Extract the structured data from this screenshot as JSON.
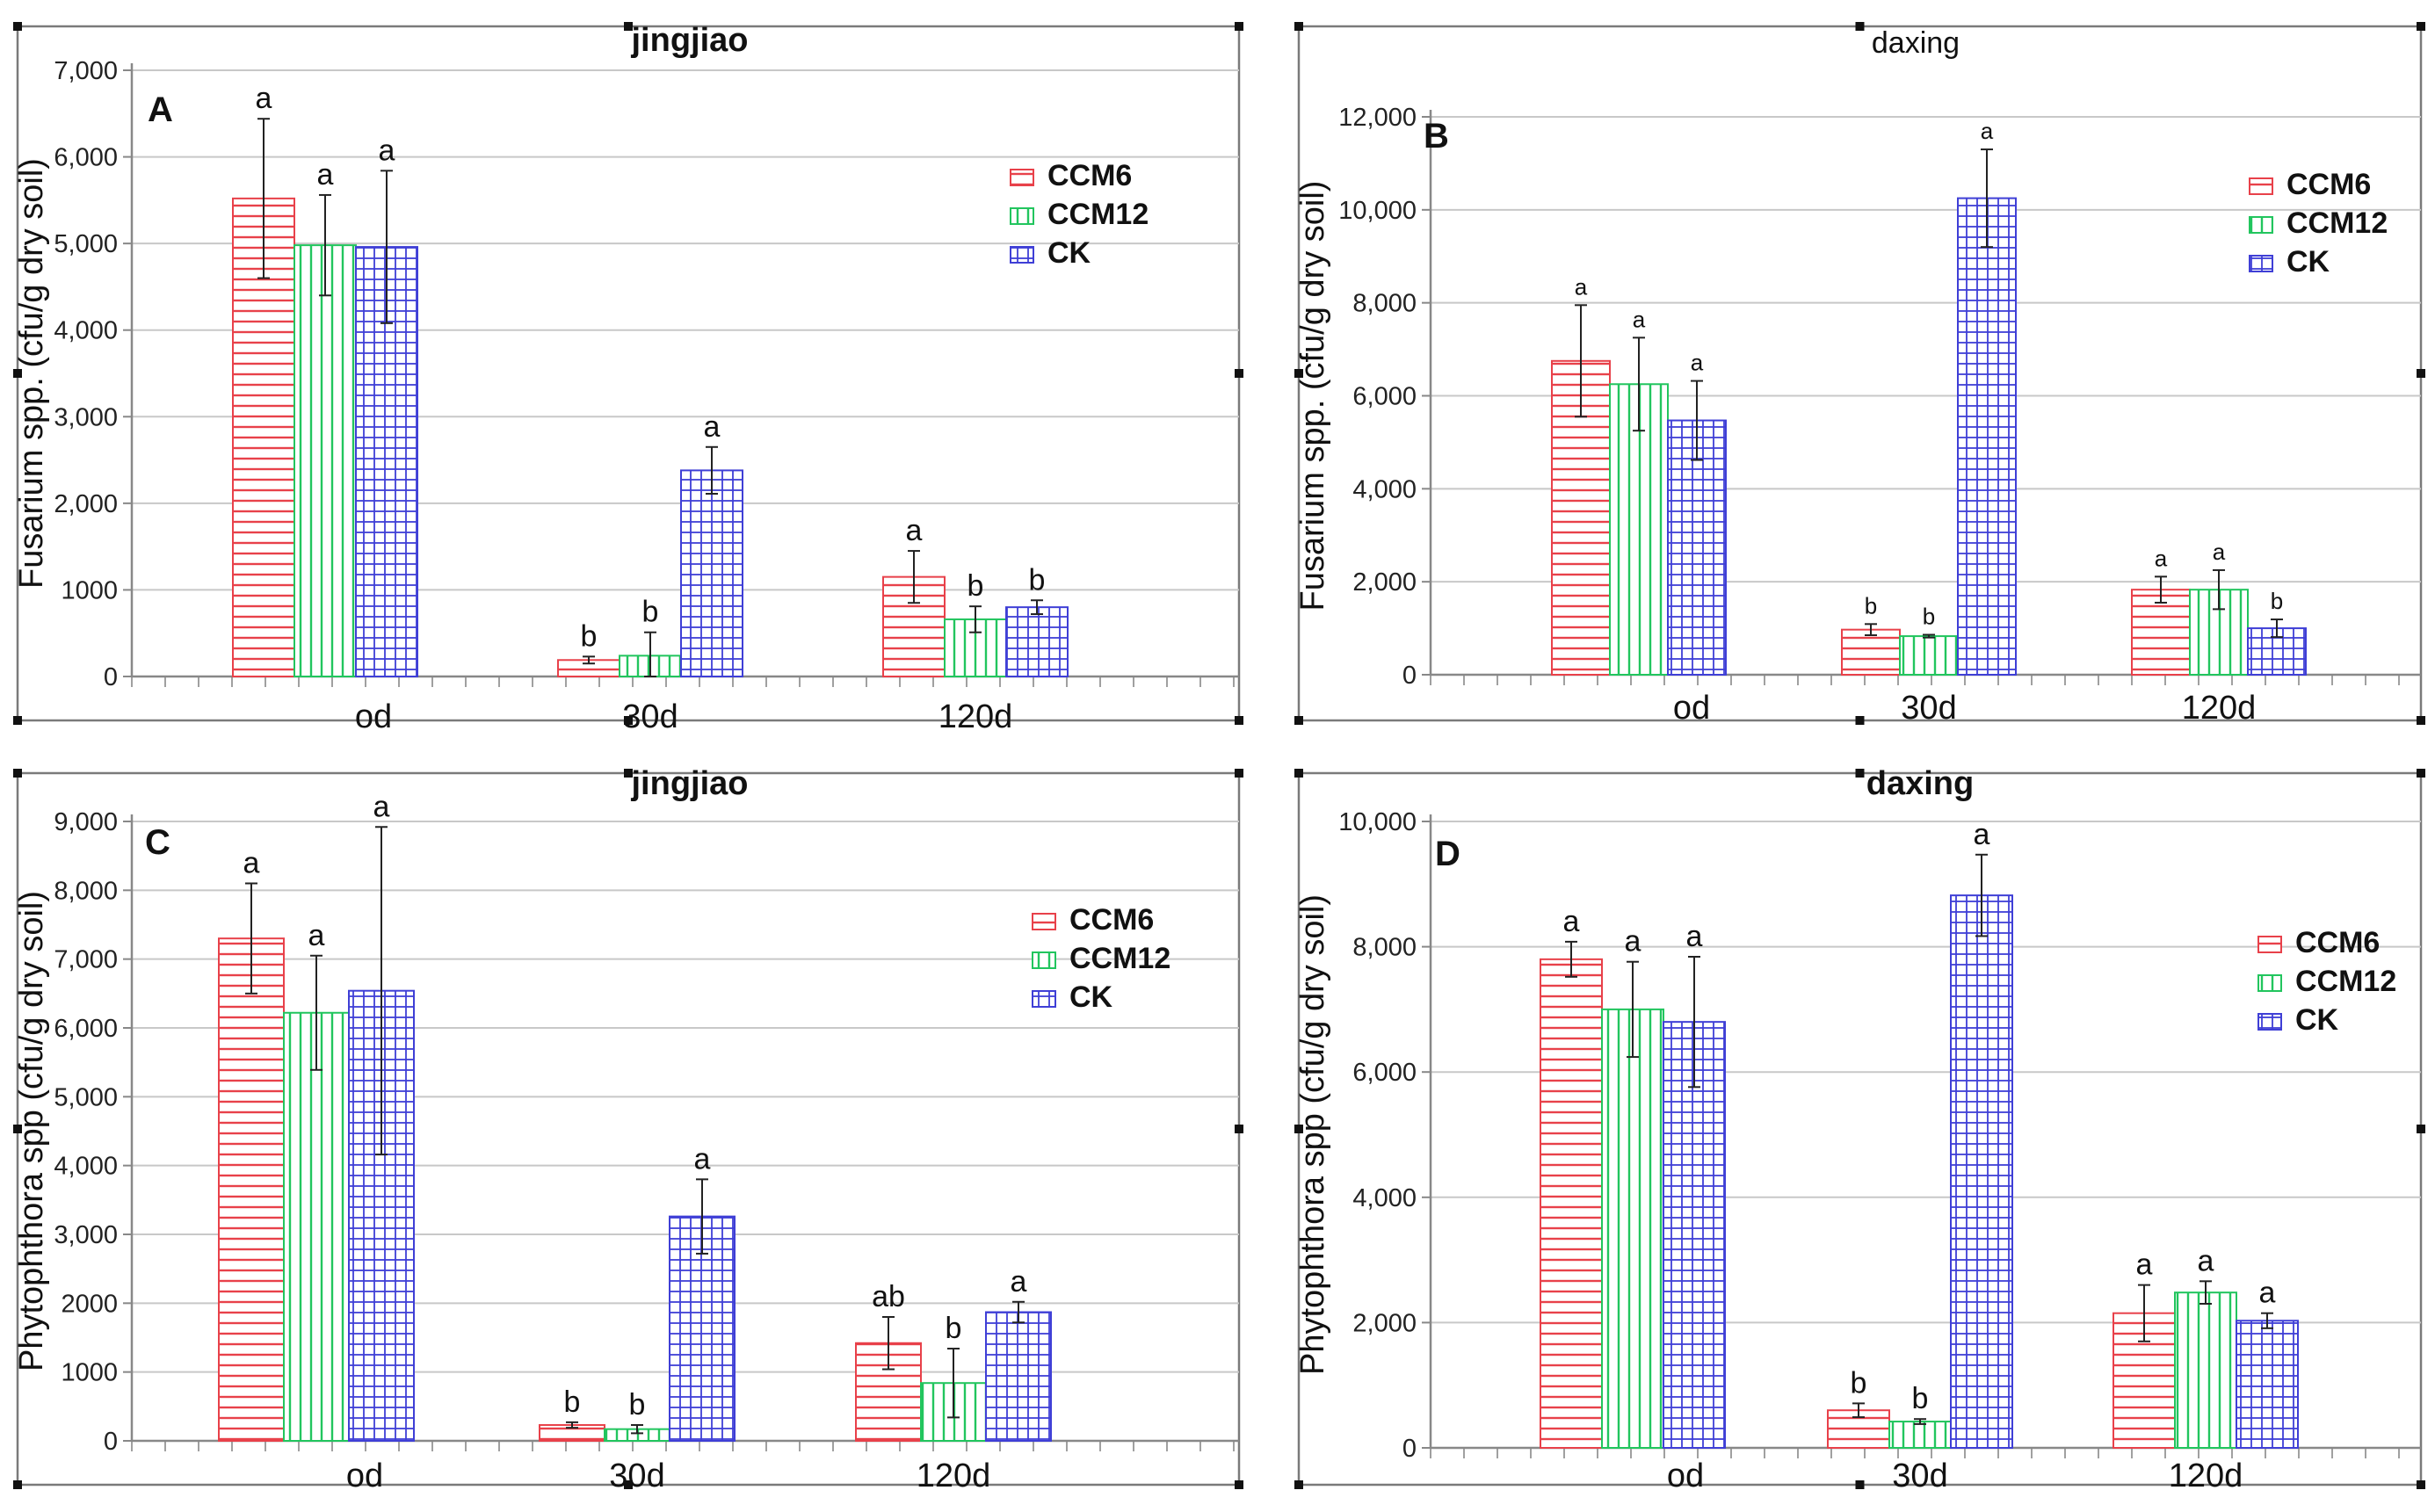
{
  "colors": {
    "CCM6": "#e8414a",
    "CCM12": "#22c55e",
    "CK": "#3f3fd6",
    "grid": "#c8c8c8",
    "axis": "#888888"
  },
  "legend": [
    "CCM6",
    "CCM12",
    "CK"
  ],
  "chart_data": [
    {
      "type": "bar",
      "panel": "A",
      "title": "jingjiao",
      "ylabel": "Fusarium spp. (cfu/g dry soil)",
      "categories": [
        "od",
        "30d",
        "120d"
      ],
      "ylim": [
        0,
        7000
      ],
      "yticks": [
        0,
        1000,
        2000,
        3000,
        4000,
        5000,
        6000,
        7000
      ],
      "yticklabels": [
        "0",
        "1000",
        "2,000",
        "3,000",
        "4,000",
        "5,000",
        "6,000",
        "7,000"
      ],
      "series": [
        {
          "name": "CCM6",
          "values": [
            5520,
            190,
            1150
          ],
          "errors": [
            920,
            40,
            300
          ],
          "labels": [
            "a",
            "b",
            "a"
          ]
        },
        {
          "name": "CCM12",
          "values": [
            4980,
            240,
            660
          ],
          "errors": [
            580,
            270,
            150
          ],
          "labels": [
            "a",
            "b",
            "b"
          ]
        },
        {
          "name": "CK",
          "values": [
            4960,
            2380,
            800
          ],
          "errors": [
            880,
            270,
            80
          ],
          "labels": [
            "a",
            "a",
            "b"
          ]
        }
      ]
    },
    {
      "type": "bar",
      "panel": "B",
      "title": "daxing",
      "ylabel": "Fusarium spp. (cfu/g dry soil)",
      "categories": [
        "od",
        "30d",
        "120d"
      ],
      "ylim": [
        0,
        12000
      ],
      "yticks": [
        0,
        2000,
        4000,
        6000,
        8000,
        10000,
        12000
      ],
      "yticklabels": [
        "0",
        "2,000",
        "4,000",
        "6,000",
        "8,000",
        "10,000",
        "12,000"
      ],
      "series": [
        {
          "name": "CCM6",
          "values": [
            6750,
            970,
            1830
          ],
          "errors": [
            1200,
            120,
            280
          ],
          "labels": [
            "a",
            "b",
            "a"
          ]
        },
        {
          "name": "CCM12",
          "values": [
            6250,
            830,
            1830
          ],
          "errors": [
            1000,
            30,
            420
          ],
          "labels": [
            "a",
            "b",
            "a"
          ]
        },
        {
          "name": "CK",
          "values": [
            5470,
            10250,
            1000
          ],
          "errors": [
            850,
            1050,
            190
          ],
          "labels": [
            "a",
            "a",
            "b"
          ]
        }
      ]
    },
    {
      "type": "bar",
      "panel": "C",
      "title": "jingjiao",
      "ylabel": "Phytophthora spp (cfu/g dry soil)",
      "categories": [
        "od",
        "30d",
        "120d"
      ],
      "ylim": [
        0,
        9000
      ],
      "yticks": [
        0,
        1000,
        2000,
        3000,
        4000,
        5000,
        6000,
        7000,
        8000,
        9000
      ],
      "yticklabels": [
        "0",
        "1000",
        "2000",
        "3,000",
        "4,000",
        "5,000",
        "6,000",
        "7,000",
        "8,000",
        "9,000"
      ],
      "series": [
        {
          "name": "CCM6",
          "values": [
            7300,
            230,
            1420
          ],
          "errors": [
            800,
            40,
            380
          ],
          "labels": [
            "a",
            "b",
            "ab"
          ]
        },
        {
          "name": "CCM12",
          "values": [
            6220,
            170,
            840
          ],
          "errors": [
            830,
            60,
            500
          ],
          "labels": [
            "a",
            "b",
            "b"
          ]
        },
        {
          "name": "CK",
          "values": [
            6540,
            3260,
            1870
          ],
          "errors": [
            2380,
            540,
            150
          ],
          "labels": [
            "a",
            "a",
            "a"
          ]
        }
      ]
    },
    {
      "type": "bar",
      "panel": "D",
      "title": "daxing",
      "ylabel": "Phytophthora spp (cfu/g dry soil)",
      "categories": [
        "od",
        "30d",
        "120d"
      ],
      "ylim": [
        0,
        10000
      ],
      "yticks": [
        0,
        2000,
        4000,
        6000,
        8000,
        10000
      ],
      "yticklabels": [
        "0",
        "2,000",
        "4,000",
        "6,000",
        "8,000",
        "10,000"
      ],
      "series": [
        {
          "name": "CCM6",
          "values": [
            7800,
            600,
            2150
          ],
          "errors": [
            280,
            110,
            450
          ],
          "labels": [
            "a",
            "b",
            "a"
          ]
        },
        {
          "name": "CCM12",
          "values": [
            7000,
            420,
            2480
          ],
          "errors": [
            760,
            40,
            180
          ],
          "labels": [
            "a",
            "b",
            "a"
          ]
        },
        {
          "name": "CK",
          "values": [
            6800,
            8820,
            2030
          ],
          "errors": [
            1040,
            650,
            120
          ],
          "labels": [
            "a",
            "a",
            "a"
          ]
        }
      ]
    }
  ]
}
